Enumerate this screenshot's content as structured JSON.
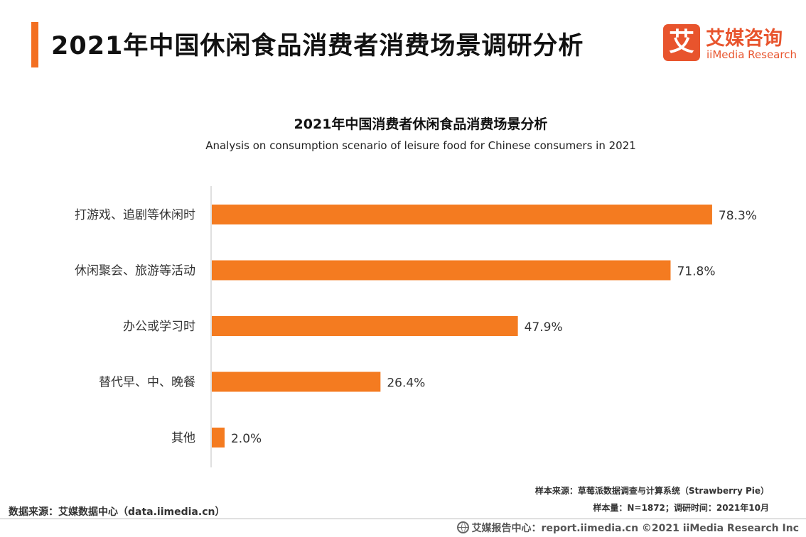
{
  "header": {
    "title": "2021年中国休闲食品消费者消费场景调研分析",
    "logo_glyph": "艾",
    "logo_cn": "艾媒咨询",
    "logo_en": "iiMedia Research",
    "accent_color": "#f36f21",
    "logo_color": "#e8542d"
  },
  "chart_data": {
    "type": "bar",
    "orientation": "horizontal",
    "title": "2021年中国消费者休闲食品消费场景分析",
    "subtitle": "Analysis on consumption scenario of leisure food for Chinese consumers in 2021",
    "categories": [
      "打游戏、追剧等休闲时",
      "休闲聚会、旅游等活动",
      "办公或学习时",
      "替代早、中、晚餐",
      "其他"
    ],
    "values": [
      78.3,
      71.8,
      47.9,
      26.4,
      2.0
    ],
    "value_labels": [
      "78.3%",
      "71.8%",
      "47.9%",
      "26.4%",
      "2.0%"
    ],
    "unit": "%",
    "bar_color": "#f47b20",
    "xlim": [
      0,
      100
    ],
    "grid": false,
    "legend": "none"
  },
  "footer": {
    "source": "数据来源：艾媒数据中心（data.iimedia.cn）",
    "sample_source": "样本来源：草莓派数据调查与计算系统（Strawberry Pie）",
    "sample_info": "样本量：N=1872；调研时间：2021年10月",
    "report_center": "艾媒报告中心：report.iimedia.cn   ©2021  iiMedia Research  Inc"
  }
}
